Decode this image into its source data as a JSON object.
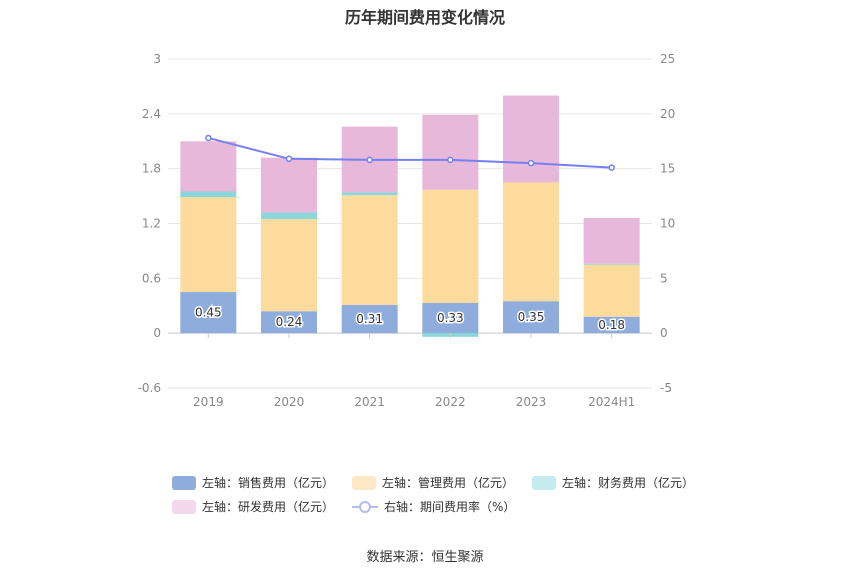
{
  "title": "历年期间费用变化情况",
  "source": "数据来源：恒生聚源",
  "legend": [
    {
      "label": "左轴：销售费用（亿元）",
      "color": "#8eacdc",
      "kind": "bar"
    },
    {
      "label": "左轴：管理费用（亿元）",
      "color": "#fddb9c",
      "kind": "bar"
    },
    {
      "label": "左轴：财务费用（亿元）",
      "color": "#89d6dc",
      "kind": "bar"
    },
    {
      "label": "左轴：研发费用（亿元）",
      "color": "#e8b8da",
      "kind": "bar"
    },
    {
      "label": "右轴：期间费用率（%）",
      "color": "#7380f0",
      "kind": "line"
    }
  ],
  "chart_data": {
    "type": "bar",
    "stacked": true,
    "categories": [
      "2019",
      "2020",
      "2021",
      "2022",
      "2023",
      "2024H1"
    ],
    "series": [
      {
        "name": "左轴：销售费用（亿元）",
        "axis": "left",
        "color": "#8eacdc",
        "values": [
          0.45,
          0.24,
          0.31,
          0.33,
          0.35,
          0.18
        ],
        "labels": [
          "0.45",
          "0.24",
          "0.31",
          "0.33",
          "0.35",
          "0.18"
        ]
      },
      {
        "name": "左轴：管理费用（亿元）",
        "axis": "left",
        "color": "#fddb9c",
        "values": [
          1.04,
          1.01,
          1.2,
          1.24,
          1.3,
          0.57
        ]
      },
      {
        "name": "左轴：财务费用（亿元）",
        "axis": "left",
        "color": "#89d6dc",
        "values": [
          0.06,
          0.07,
          0.03,
          -0.04,
          0.0,
          0.01
        ]
      },
      {
        "name": "左轴：研发费用（亿元）",
        "axis": "left",
        "color": "#e8b8da",
        "values": [
          0.55,
          0.6,
          0.72,
          0.82,
          0.95,
          0.5
        ]
      },
      {
        "name": "右轴：期间费用率（%）",
        "axis": "right",
        "type": "line",
        "color": "#7380f0",
        "values": [
          17.8,
          15.9,
          15.8,
          15.8,
          15.5,
          15.1
        ]
      }
    ],
    "y_left": {
      "min": -0.6,
      "max": 3,
      "ticks": [
        "-0.6",
        "0",
        "0.6",
        "1.2",
        "1.8",
        "2.4",
        "3"
      ]
    },
    "y_right": {
      "min": -5,
      "max": 25,
      "ticks": [
        "-5",
        "0",
        "5",
        "10",
        "15",
        "20",
        "25"
      ]
    },
    "grid": true,
    "legend_position": "bottom"
  }
}
